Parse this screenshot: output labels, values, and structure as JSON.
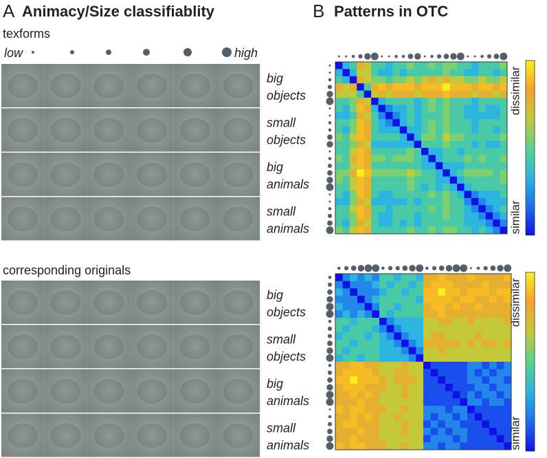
{
  "panel_a": {
    "letter": "A",
    "title": "Animacy/Size classifiablity",
    "texforms_label": "texforms",
    "legend": {
      "low": "low",
      "high": "high",
      "levels": [
        1,
        2,
        3,
        4,
        5,
        6
      ]
    },
    "originals_label": "corresponding originals",
    "row_labels": [
      [
        "big",
        "objects"
      ],
      [
        "small",
        "objects"
      ],
      [
        "big",
        "animals"
      ],
      [
        "small",
        "animals"
      ]
    ]
  },
  "panel_b": {
    "letter": "B",
    "title": "Patterns in OTC"
  },
  "chart_data": [
    {
      "type": "heatmap",
      "clim": [
        0,
        9
      ],
      "colormap": [
        "#1010e8",
        "#1f6fef",
        "#2bb5e0",
        "#5ad38a",
        "#c4c93a",
        "#f6a22a",
        "#f8f01c"
      ],
      "colorbar_labels": {
        "high": "dissimilar",
        "low": "similar"
      },
      "dot_sizes": [
        1,
        1,
        2,
        3,
        5,
        6,
        1,
        1,
        2,
        2,
        4,
        5,
        1,
        2,
        3,
        4,
        5,
        6,
        1,
        1,
        2,
        3,
        4,
        6
      ],
      "matrix": [
        [
          0,
          3,
          4,
          7,
          6,
          4,
          4,
          3,
          4,
          4,
          5,
          4,
          4,
          5,
          4,
          5,
          5,
          4,
          4,
          3,
          4,
          4,
          4,
          5
        ],
        [
          3,
          0,
          3,
          6,
          6,
          4,
          3,
          3,
          4,
          3,
          4,
          4,
          4,
          4,
          4,
          5,
          4,
          4,
          3,
          3,
          4,
          4,
          3,
          4
        ],
        [
          4,
          3,
          0,
          7,
          6,
          5,
          5,
          4,
          5,
          5,
          6,
          5,
          6,
          7,
          6,
          7,
          6,
          6,
          5,
          5,
          6,
          5,
          5,
          6
        ],
        [
          7,
          6,
          7,
          0,
          4,
          7,
          8,
          7,
          8,
          8,
          8,
          7,
          8,
          8,
          8,
          9,
          8,
          8,
          8,
          7,
          8,
          8,
          7,
          8
        ],
        [
          6,
          6,
          6,
          4,
          0,
          6,
          7,
          6,
          7,
          7,
          7,
          6,
          7,
          7,
          7,
          8,
          7,
          7,
          7,
          6,
          7,
          7,
          6,
          7
        ],
        [
          4,
          4,
          5,
          7,
          6,
          0,
          3,
          4,
          4,
          4,
          4,
          3,
          4,
          5,
          4,
          5,
          4,
          4,
          4,
          3,
          4,
          4,
          4,
          4
        ],
        [
          4,
          3,
          5,
          8,
          7,
          3,
          0,
          2,
          3,
          3,
          4,
          3,
          4,
          5,
          4,
          5,
          4,
          4,
          3,
          3,
          4,
          3,
          3,
          4
        ],
        [
          3,
          3,
          4,
          7,
          6,
          4,
          2,
          0,
          2,
          3,
          4,
          3,
          4,
          4,
          4,
          5,
          4,
          4,
          3,
          3,
          3,
          3,
          3,
          4
        ],
        [
          4,
          4,
          5,
          8,
          7,
          4,
          3,
          2,
          0,
          3,
          4,
          3,
          4,
          5,
          4,
          5,
          4,
          4,
          4,
          3,
          4,
          4,
          4,
          4
        ],
        [
          4,
          3,
          5,
          8,
          7,
          4,
          3,
          3,
          3,
          0,
          3,
          3,
          4,
          5,
          4,
          5,
          4,
          4,
          4,
          3,
          4,
          4,
          3,
          4
        ],
        [
          5,
          4,
          6,
          8,
          7,
          4,
          4,
          4,
          4,
          3,
          0,
          3,
          5,
          5,
          4,
          6,
          5,
          5,
          4,
          4,
          4,
          4,
          4,
          5
        ],
        [
          4,
          4,
          5,
          7,
          6,
          3,
          3,
          3,
          3,
          3,
          3,
          0,
          4,
          4,
          4,
          5,
          4,
          4,
          4,
          3,
          4,
          3,
          3,
          4
        ],
        [
          4,
          4,
          6,
          8,
          7,
          4,
          4,
          4,
          4,
          4,
          5,
          4,
          0,
          3,
          3,
          4,
          4,
          3,
          4,
          4,
          4,
          4,
          4,
          4
        ],
        [
          5,
          4,
          7,
          8,
          7,
          5,
          5,
          4,
          5,
          5,
          5,
          4,
          3,
          0,
          3,
          4,
          4,
          4,
          5,
          4,
          5,
          4,
          4,
          5
        ],
        [
          4,
          4,
          6,
          8,
          7,
          4,
          4,
          4,
          4,
          4,
          4,
          4,
          3,
          3,
          0,
          3,
          3,
          3,
          4,
          4,
          4,
          4,
          4,
          4
        ],
        [
          5,
          5,
          7,
          9,
          8,
          5,
          5,
          5,
          5,
          5,
          6,
          5,
          4,
          4,
          3,
          0,
          3,
          4,
          5,
          5,
          5,
          5,
          4,
          5
        ],
        [
          5,
          4,
          6,
          8,
          7,
          4,
          4,
          4,
          4,
          4,
          5,
          4,
          4,
          4,
          3,
          3,
          0,
          3,
          4,
          4,
          4,
          4,
          4,
          5
        ],
        [
          4,
          4,
          6,
          8,
          7,
          4,
          4,
          4,
          4,
          4,
          5,
          4,
          3,
          4,
          3,
          4,
          3,
          0,
          3,
          4,
          4,
          4,
          4,
          4
        ],
        [
          4,
          3,
          5,
          8,
          7,
          4,
          3,
          3,
          4,
          4,
          4,
          4,
          4,
          5,
          4,
          5,
          4,
          3,
          0,
          2,
          3,
          3,
          3,
          4
        ],
        [
          3,
          3,
          5,
          7,
          6,
          3,
          3,
          3,
          3,
          3,
          4,
          3,
          4,
          4,
          4,
          5,
          4,
          4,
          2,
          0,
          2,
          3,
          3,
          3
        ],
        [
          4,
          4,
          6,
          8,
          7,
          4,
          4,
          3,
          4,
          4,
          4,
          4,
          4,
          5,
          4,
          5,
          4,
          4,
          3,
          2,
          0,
          2,
          3,
          4
        ],
        [
          4,
          4,
          5,
          8,
          7,
          4,
          3,
          3,
          4,
          4,
          4,
          3,
          4,
          4,
          4,
          5,
          4,
          4,
          3,
          3,
          2,
          0,
          2,
          3
        ],
        [
          4,
          3,
          5,
          7,
          6,
          4,
          3,
          3,
          4,
          3,
          4,
          3,
          4,
          4,
          4,
          4,
          4,
          4,
          3,
          3,
          3,
          2,
          0,
          2
        ],
        [
          5,
          4,
          6,
          8,
          7,
          4,
          4,
          4,
          4,
          4,
          5,
          4,
          4,
          5,
          4,
          5,
          5,
          4,
          4,
          3,
          4,
          3,
          2,
          0
        ]
      ]
    },
    {
      "type": "heatmap",
      "clim": [
        0,
        9
      ],
      "colormap": [
        "#1010e8",
        "#1f6fef",
        "#2bb5e0",
        "#5ad38a",
        "#c4c93a",
        "#f6a22a",
        "#f8f01c"
      ],
      "colorbar_labels": {
        "high": "dissimilar",
        "low": "similar"
      },
      "dot_sizes": [
        2,
        3,
        4,
        5,
        6,
        6,
        2,
        3,
        3,
        4,
        5,
        6,
        2,
        3,
        4,
        5,
        6,
        6,
        1,
        2,
        3,
        4,
        5,
        6
      ],
      "matrix": [
        [
          0,
          2,
          3,
          2,
          3,
          2,
          4,
          4,
          3,
          4,
          4,
          3,
          7,
          7,
          8,
          7,
          7,
          7,
          8,
          7,
          7,
          7,
          7,
          8
        ],
        [
          2,
          0,
          2,
          2,
          2,
          3,
          4,
          3,
          4,
          4,
          3,
          4,
          7,
          8,
          8,
          8,
          7,
          7,
          7,
          7,
          8,
          7,
          7,
          7
        ],
        [
          3,
          2,
          0,
          2,
          2,
          2,
          3,
          4,
          4,
          3,
          4,
          4,
          8,
          8,
          9,
          8,
          8,
          7,
          8,
          8,
          8,
          7,
          8,
          8
        ],
        [
          2,
          2,
          2,
          0,
          2,
          3,
          4,
          4,
          4,
          4,
          4,
          3,
          8,
          8,
          8,
          8,
          7,
          8,
          8,
          7,
          7,
          8,
          7,
          8
        ],
        [
          3,
          2,
          2,
          2,
          0,
          2,
          4,
          4,
          3,
          4,
          4,
          4,
          7,
          8,
          8,
          7,
          8,
          7,
          7,
          8,
          7,
          7,
          7,
          7
        ],
        [
          2,
          3,
          2,
          3,
          2,
          0,
          4,
          3,
          4,
          4,
          4,
          4,
          7,
          7,
          8,
          7,
          7,
          7,
          7,
          7,
          7,
          7,
          7,
          7
        ],
        [
          4,
          4,
          3,
          4,
          4,
          4,
          0,
          2,
          3,
          3,
          3,
          3,
          6,
          6,
          7,
          7,
          6,
          6,
          7,
          6,
          6,
          6,
          6,
          7
        ],
        [
          4,
          3,
          4,
          4,
          4,
          3,
          2,
          0,
          2,
          3,
          3,
          3,
          6,
          6,
          6,
          6,
          6,
          6,
          6,
          6,
          6,
          6,
          6,
          6
        ],
        [
          3,
          4,
          4,
          4,
          3,
          4,
          3,
          2,
          0,
          2,
          3,
          3,
          6,
          7,
          7,
          6,
          6,
          6,
          6,
          7,
          6,
          6,
          6,
          6
        ],
        [
          4,
          4,
          3,
          4,
          4,
          4,
          3,
          3,
          2,
          0,
          2,
          3,
          7,
          7,
          7,
          7,
          7,
          6,
          7,
          6,
          7,
          7,
          6,
          7
        ],
        [
          4,
          3,
          4,
          4,
          4,
          4,
          3,
          3,
          3,
          2,
          0,
          2,
          6,
          6,
          7,
          6,
          6,
          6,
          6,
          6,
          6,
          6,
          6,
          6
        ],
        [
          3,
          4,
          4,
          3,
          4,
          4,
          3,
          3,
          3,
          3,
          2,
          0,
          6,
          6,
          6,
          6,
          6,
          6,
          6,
          6,
          6,
          6,
          6,
          6
        ],
        [
          7,
          7,
          8,
          8,
          7,
          7,
          6,
          6,
          6,
          7,
          6,
          6,
          0,
          1,
          1,
          1,
          1,
          1,
          2,
          2,
          1,
          2,
          1,
          2
        ],
        [
          7,
          8,
          8,
          8,
          8,
          7,
          6,
          6,
          7,
          7,
          6,
          6,
          1,
          0,
          1,
          1,
          1,
          1,
          2,
          1,
          2,
          1,
          2,
          2
        ],
        [
          8,
          8,
          9,
          8,
          8,
          8,
          7,
          6,
          7,
          7,
          7,
          6,
          1,
          1,
          0,
          1,
          1,
          1,
          2,
          2,
          1,
          2,
          2,
          1
        ],
        [
          7,
          8,
          8,
          8,
          7,
          7,
          7,
          6,
          6,
          7,
          6,
          6,
          1,
          1,
          1,
          0,
          1,
          1,
          1,
          2,
          2,
          1,
          2,
          2
        ],
        [
          7,
          7,
          8,
          7,
          8,
          7,
          6,
          6,
          6,
          7,
          6,
          6,
          1,
          1,
          1,
          1,
          0,
          1,
          2,
          1,
          2,
          2,
          1,
          2
        ],
        [
          7,
          7,
          7,
          8,
          7,
          7,
          6,
          6,
          6,
          6,
          6,
          6,
          1,
          1,
          1,
          1,
          1,
          0,
          2,
          2,
          1,
          2,
          2,
          1
        ],
        [
          8,
          7,
          8,
          8,
          7,
          7,
          7,
          6,
          6,
          7,
          6,
          6,
          2,
          2,
          2,
          1,
          2,
          2,
          0,
          1,
          1,
          1,
          1,
          1
        ],
        [
          7,
          7,
          8,
          7,
          8,
          7,
          6,
          6,
          7,
          6,
          6,
          6,
          2,
          1,
          2,
          2,
          1,
          2,
          1,
          0,
          1,
          1,
          1,
          1
        ],
        [
          7,
          8,
          8,
          7,
          7,
          7,
          6,
          6,
          6,
          7,
          6,
          6,
          1,
          2,
          1,
          2,
          2,
          1,
          1,
          1,
          0,
          1,
          1,
          1
        ],
        [
          7,
          7,
          7,
          8,
          7,
          7,
          6,
          6,
          6,
          7,
          6,
          6,
          2,
          1,
          2,
          1,
          2,
          2,
          1,
          1,
          1,
          0,
          1,
          1
        ],
        [
          7,
          7,
          8,
          7,
          7,
          7,
          6,
          6,
          6,
          6,
          6,
          6,
          1,
          2,
          2,
          2,
          1,
          2,
          1,
          1,
          1,
          1,
          0,
          1
        ],
        [
          8,
          7,
          8,
          8,
          7,
          7,
          7,
          6,
          6,
          7,
          6,
          6,
          2,
          2,
          1,
          2,
          2,
          1,
          1,
          1,
          1,
          1,
          1,
          0
        ]
      ]
    }
  ]
}
